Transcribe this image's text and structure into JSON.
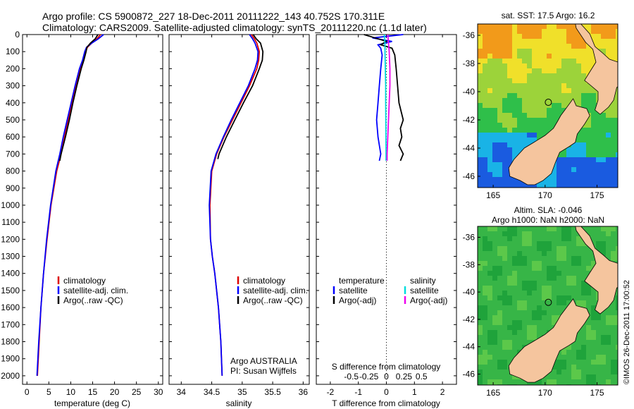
{
  "header": {
    "line1": "Argo profile: CS 5900872_227 18-Dec-2011 20111222_143 40.752S 170.311E",
    "line2": "Climatology: CARS2009. Satellite-adjusted climatology: synTS_20111220.nc (1.1d later)"
  },
  "colors": {
    "climatology": "#dd0000",
    "satellite": "#0000ff",
    "argo": "#000000",
    "sal_satellite": "#00dddd",
    "sal_argo": "#ee00ee",
    "land": "#f5c59e"
  },
  "chart_data": [
    {
      "id": "temperature",
      "type": "line",
      "xlabel": "temperature (deg C)",
      "ylabel": "",
      "xlim": [
        -1,
        31
      ],
      "ylim": [
        2050,
        0
      ],
      "x_ticks": [
        0,
        5,
        10,
        15,
        20,
        25,
        30
      ],
      "y_ticks": [
        0,
        100,
        200,
        300,
        400,
        500,
        600,
        700,
        800,
        900,
        1000,
        1100,
        1200,
        1300,
        1400,
        1500,
        1600,
        1700,
        1800,
        1900,
        2000
      ],
      "legend": [
        "climatology",
        "satellite-adj. clim.",
        "Argo(..raw -QC)"
      ],
      "legend_position": "lower-center",
      "series": [
        {
          "name": "climatology",
          "color": "climatology",
          "depth": [
            0,
            25,
            50,
            75,
            100,
            150,
            200,
            300,
            400,
            500,
            600,
            700,
            800,
            1000,
            1200,
            1400,
            1600,
            1800,
            2000
          ],
          "values": [
            16.8,
            16.0,
            14.8,
            13.8,
            13.4,
            12.9,
            12.2,
            11.2,
            10.3,
            9.4,
            8.6,
            7.8,
            6.8,
            5.5,
            4.6,
            3.8,
            3.2,
            2.8,
            2.4
          ]
        },
        {
          "name": "satellite-adj. clim.",
          "color": "satellite",
          "depth": [
            0,
            25,
            50,
            75,
            100,
            150,
            200,
            300,
            400,
            500,
            600,
            700,
            800,
            1000,
            1200,
            1400,
            1600,
            1800,
            2000
          ],
          "values": [
            17.5,
            16.3,
            14.8,
            13.6,
            13.2,
            12.7,
            12.0,
            11.0,
            10.1,
            9.2,
            8.3,
            7.5,
            6.6,
            5.4,
            4.5,
            3.8,
            3.2,
            2.7,
            2.3
          ]
        },
        {
          "name": "Argo(..raw -QC)",
          "color": "argo",
          "depth": [
            0,
            25,
            50,
            75,
            100,
            150,
            200,
            300,
            400,
            500,
            600,
            700,
            740
          ],
          "values": [
            16.2,
            15.6,
            14.5,
            13.7,
            13.5,
            13.0,
            12.4,
            11.4,
            10.5,
            9.7,
            8.8,
            7.8,
            7.5
          ]
        }
      ]
    },
    {
      "id": "salinity",
      "type": "line",
      "xlabel": "salinity",
      "xlim": [
        33.8,
        36.1
      ],
      "ylim": [
        2050,
        0
      ],
      "x_ticks": [
        34,
        34.5,
        35,
        35.5,
        36
      ],
      "legend": [
        "climatology",
        "satellite-adj. clim.",
        "Argo(..raw -QC)"
      ],
      "legend_position": "lower-center",
      "annotations": [
        "Argo AUSTRALIA",
        "PI: Susan Wijffels"
      ],
      "series": [
        {
          "name": "climatology",
          "color": "climatology",
          "depth": [
            0,
            25,
            50,
            100,
            150,
            200,
            300,
            400,
            500,
            600,
            700,
            800,
            1000,
            1200,
            1300,
            1400,
            1600,
            1800,
            2000
          ],
          "values": [
            35.15,
            35.2,
            35.24,
            35.28,
            35.27,
            35.24,
            35.12,
            34.98,
            34.84,
            34.7,
            34.58,
            34.5,
            34.47,
            34.48,
            34.51,
            34.55,
            34.61,
            34.65,
            34.67
          ]
        },
        {
          "name": "satellite-adj. clim.",
          "color": "satellite",
          "depth": [
            0,
            25,
            50,
            100,
            150,
            200,
            300,
            400,
            500,
            600,
            700,
            800,
            1000,
            1200,
            1300,
            1400,
            1600,
            1800,
            2000
          ],
          "values": [
            35.12,
            35.17,
            35.21,
            35.26,
            35.25,
            35.21,
            35.1,
            34.96,
            34.82,
            34.69,
            34.57,
            34.49,
            34.46,
            34.48,
            34.51,
            34.55,
            34.61,
            34.65,
            34.67
          ]
        },
        {
          "name": "Argo(..raw -QC)",
          "color": "argo",
          "depth": [
            0,
            25,
            50,
            100,
            150,
            200,
            300,
            400,
            500,
            600,
            700,
            730
          ],
          "values": [
            35.18,
            35.23,
            35.3,
            35.34,
            35.33,
            35.28,
            35.17,
            35.02,
            34.88,
            34.74,
            34.62,
            34.6
          ]
        }
      ]
    },
    {
      "id": "difference",
      "type": "line",
      "xlabel": "T difference from climatology",
      "xlabel_top": "S difference from climatology",
      "xlim": [
        -2.5,
        2.5
      ],
      "ylim": [
        2050,
        0
      ],
      "x_ticks": [
        -2,
        -1,
        0,
        1,
        2
      ],
      "x_tick_labels": [
        "-2",
        "-1",
        "0",
        "1",
        "2"
      ],
      "x2_ticks": [
        -0.5,
        -0.25,
        0,
        0.25,
        0.5
      ],
      "x2_tick_labels": [
        "-0.5",
        "-0.25",
        "0",
        "0.25",
        "0.5"
      ],
      "zero_line": "dotted",
      "legend_groups": [
        {
          "title": "temperature",
          "entries": [
            "satellite",
            "Argo(-adj)"
          ]
        },
        {
          "title": "salinity",
          "entries": [
            "satellite",
            "Argo(-adj)"
          ]
        }
      ],
      "series": [
        {
          "name": "temperature satellite",
          "color": "satellite",
          "depth": [
            0,
            20,
            40,
            60,
            80,
            120,
            200,
            300,
            400,
            500,
            600,
            700,
            740
          ],
          "values": [
            0.6,
            -0.5,
            0.2,
            -0.3,
            -0.2,
            -0.15,
            -0.2,
            -0.25,
            -0.3,
            -0.35,
            -0.3,
            -0.2,
            -0.25
          ]
        },
        {
          "name": "temperature Argo(-adj)",
          "color": "argo",
          "depth": [
            0,
            20,
            40,
            60,
            80,
            120,
            200,
            300,
            400,
            500,
            550,
            600,
            650,
            700,
            740
          ],
          "values": [
            -0.8,
            -0.4,
            0.0,
            -0.2,
            0.2,
            0.3,
            0.35,
            0.4,
            0.45,
            0.6,
            0.5,
            0.55,
            0.45,
            0.6,
            0.5
          ]
        },
        {
          "name": "salinity satellite",
          "color": "sal_satellite",
          "depth": [
            0,
            50,
            100,
            200,
            300,
            400,
            500,
            600,
            700,
            740
          ],
          "values": [
            -0.03,
            -0.02,
            -0.02,
            -0.015,
            -0.01,
            -0.01,
            -0.008,
            -0.006,
            -0.005,
            -0.005
          ]
        },
        {
          "name": "salinity Argo(-adj)",
          "color": "sal_argo",
          "depth": [
            0,
            50,
            100,
            200,
            300,
            400,
            500,
            600,
            700,
            740
          ],
          "values": [
            0.02,
            0.03,
            0.04,
            0.05,
            0.05,
            0.04,
            0.03,
            0.02,
            0.01,
            0.01
          ]
        }
      ]
    },
    {
      "id": "sst-map",
      "type": "heatmap",
      "title": "sat. SST: 17.5  Argo: 16.2",
      "x_ticks": [
        165,
        170,
        175
      ],
      "y_ticks": [
        -36,
        -38,
        -40,
        -42,
        -44,
        -46
      ],
      "xlim": [
        163.5,
        177
      ],
      "ylim": [
        -46.8,
        -35.2
      ],
      "argo_position": [
        170.311,
        -40.752
      ]
    },
    {
      "id": "sla-map",
      "type": "heatmap",
      "title_line1": "Altim. SLA: -0.046",
      "title_line2": "Argo h1000: NaN h2000: NaN",
      "x_ticks": [
        165,
        170,
        175
      ],
      "y_ticks": [
        -36,
        -38,
        -40,
        -42,
        -44,
        -46
      ],
      "xlim": [
        163.5,
        177
      ],
      "ylim": [
        -46.8,
        -35.2
      ],
      "argo_position": [
        170.311,
        -40.752
      ]
    }
  ],
  "credit": "©IMOS 26-Dec-2011 17:00:52"
}
